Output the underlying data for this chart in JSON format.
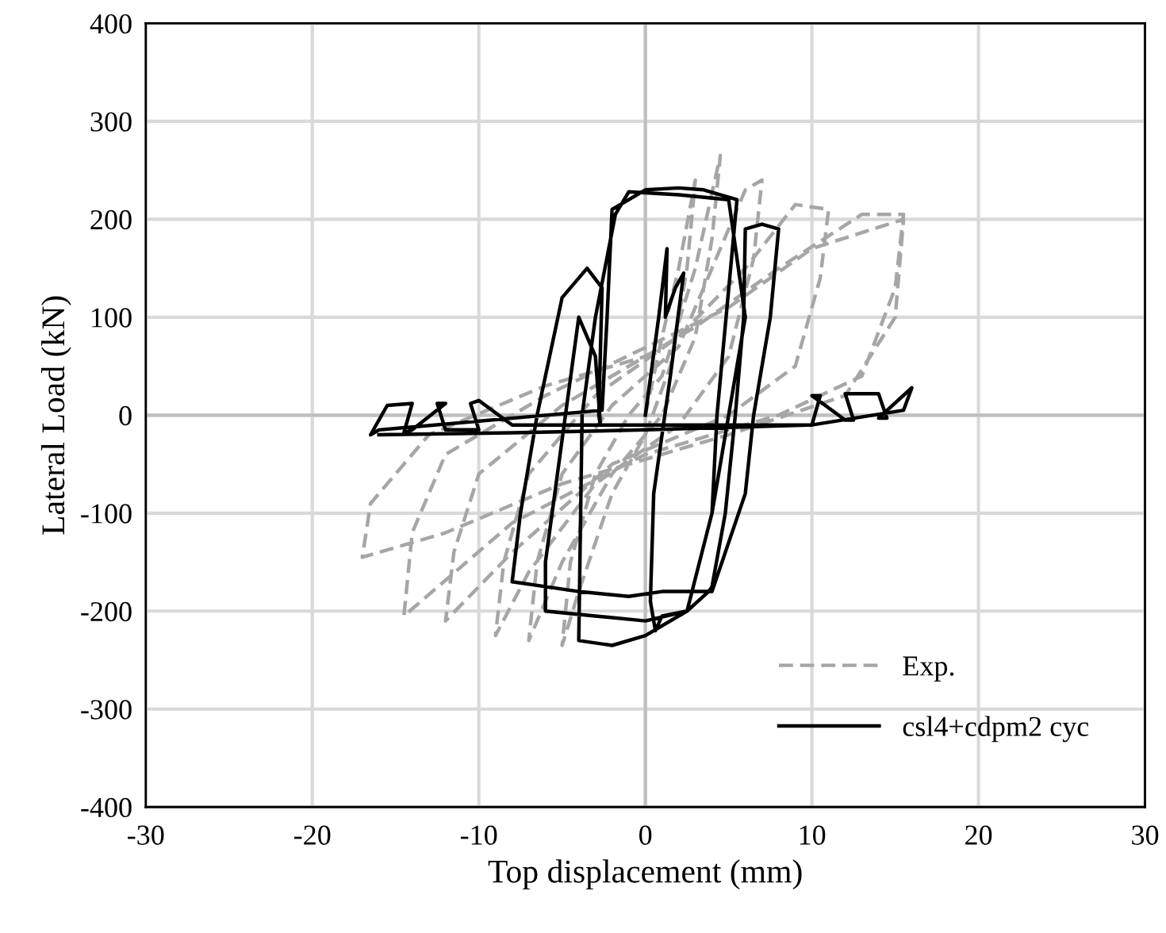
{
  "chart_data": {
    "type": "line",
    "xlabel": "Top displacement (mm)",
    "ylabel": "Lateral Load (kN)",
    "xlim": [
      -30,
      30
    ],
    "ylim": [
      -400,
      400
    ],
    "xticks": [
      -30,
      -20,
      -10,
      0,
      10,
      20,
      30
    ],
    "yticks": [
      -400,
      -300,
      -200,
      -100,
      0,
      100,
      200,
      300,
      400
    ],
    "grid": true,
    "legend": "bottom right",
    "marker": "none",
    "series": [
      {
        "name": "Exp.",
        "color": "#a6a6a6",
        "line_style": "dashed",
        "x": [
          0,
          1,
          2,
          3,
          2.5,
          1.5,
          0,
          -2,
          -4,
          -5,
          -4.5,
          -3,
          -1,
          1,
          3,
          4.5,
          4,
          3,
          1,
          -2,
          -5,
          -7,
          -6.5,
          -5,
          -2,
          2,
          4,
          6,
          7,
          6.5,
          5,
          2,
          -3,
          -7,
          -9,
          -8.5,
          -7,
          -3,
          2,
          6,
          9,
          11,
          10.5,
          9,
          5,
          -2,
          -8,
          -12,
          -11.5,
          -10,
          -5,
          3,
          8,
          13,
          15.5,
          15,
          13,
          8,
          0,
          -8,
          -14.5,
          -14,
          -12,
          -6,
          5,
          10,
          15.5,
          15,
          12,
          5,
          -5,
          -12,
          -17,
          -16.5,
          -13,
          -6,
          0
        ],
        "values": [
          0,
          80,
          150,
          240,
          150,
          50,
          -20,
          -80,
          -180,
          -235,
          -150,
          -60,
          0,
          40,
          150,
          265,
          180,
          80,
          0,
          -60,
          -150,
          -230,
          -150,
          -60,
          10,
          70,
          150,
          230,
          240,
          160,
          60,
          -10,
          -70,
          -160,
          -225,
          -150,
          -60,
          20,
          80,
          150,
          215,
          210,
          140,
          50,
          0,
          -50,
          -140,
          -210,
          -140,
          -60,
          10,
          90,
          150,
          205,
          205,
          130,
          40,
          0,
          -40,
          -110,
          -205,
          -120,
          -40,
          20,
          110,
          170,
          200,
          100,
          20,
          -20,
          -70,
          -120,
          -145,
          -90,
          -20,
          30,
          60
        ]
      },
      {
        "name": "csl4+cdpm2 cyc",
        "color": "#000000",
        "line_style": "solid",
        "x": [
          0,
          0.8,
          1.3,
          1.2,
          1.8,
          2.3,
          1.5,
          0.5,
          0.3,
          0.6,
          1,
          2.5,
          3.8,
          4,
          4.8,
          5.4,
          5.9,
          6,
          7,
          8,
          7.5,
          6.5,
          6,
          4,
          1,
          -1,
          -4,
          -6,
          -8,
          -7.5,
          -6.5,
          -5,
          -3.5,
          -2.6,
          -2.8,
          -2.7,
          -3,
          -4,
          -4.8,
          -6,
          -6,
          -3,
          0,
          2.5,
          4,
          5,
          6,
          5,
          2,
          -1,
          -1.8,
          -3,
          -3.8,
          -4,
          -2,
          0,
          2.5,
          4,
          4.3,
          5.5,
          3.5,
          2,
          0,
          -2,
          -2.3,
          -2.6,
          -16,
          -16.5,
          -15.5,
          -14,
          -14.5,
          -14,
          -12,
          -12.5,
          -12,
          -10,
          -10.5,
          -10,
          -8,
          10,
          10.5,
          10,
          12,
          12.5,
          12,
          14,
          14.5,
          14,
          16,
          15.5,
          10,
          0,
          -8,
          -16
        ],
        "values": [
          0,
          100,
          170,
          100,
          130,
          145,
          40,
          -80,
          -190,
          -220,
          -205,
          -200,
          -180,
          -175,
          -100,
          0,
          100,
          190,
          195,
          190,
          100,
          0,
          -80,
          -180,
          -180,
          -185,
          -180,
          -175,
          -170,
          -100,
          0,
          120,
          150,
          130,
          0,
          -10,
          60,
          100,
          0,
          -150,
          -200,
          -205,
          -210,
          -200,
          -100,
          0,
          100,
          220,
          225,
          228,
          205,
          100,
          0,
          -230,
          -235,
          -225,
          -200,
          -100,
          0,
          220,
          230,
          232,
          230,
          210,
          100,
          5,
          -15,
          -20,
          10,
          12,
          -18,
          -15,
          12,
          12,
          -15,
          -15,
          12,
          15,
          -10,
          -10,
          20,
          20,
          -5,
          -5,
          22,
          22,
          -3,
          -3,
          28,
          5,
          -10,
          -15,
          -18,
          -20
        ]
      }
    ]
  }
}
